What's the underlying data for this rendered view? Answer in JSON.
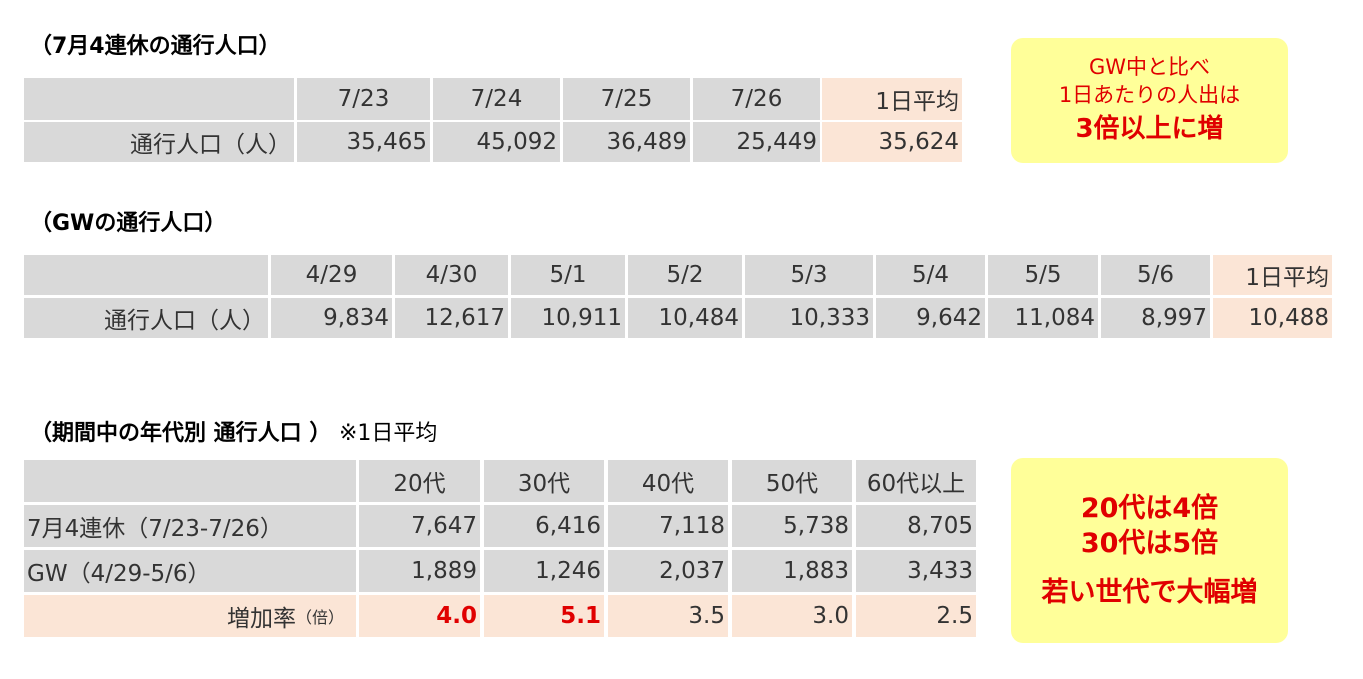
{
  "tables": [
    {
      "title": "（7月4連休の通行人口）",
      "header": [
        "7/23",
        "7/24",
        "7/25",
        "7/26",
        "1日平均"
      ],
      "rows": [
        {
          "label": "通行人口（人）",
          "cells": [
            "35,465",
            "45,092",
            "36,489",
            "25,449",
            "35,624"
          ]
        }
      ]
    },
    {
      "title": "（GWの通行人口）",
      "header": [
        "4/29",
        "4/30",
        "5/1",
        "5/2",
        "5/3",
        "5/4",
        "5/5",
        "5/6",
        "1日平均"
      ],
      "rows": [
        {
          "label": "通行人口（人）",
          "cells": [
            "9,834",
            "12,617",
            "10,911",
            "10,484",
            "10,333",
            "9,642",
            "11,084",
            "8,997",
            "10,488"
          ]
        }
      ]
    },
    {
      "title": "（期間中の年代別 通行人口 ）",
      "note": "※1日平均",
      "header": [
        "20代",
        "30代",
        "40代",
        "50代",
        "60代以上"
      ],
      "rows": [
        {
          "label": "7月4連休（7/23-7/26）",
          "cells": [
            "7,647",
            "6,416",
            "7,118",
            "5,738",
            "8,705"
          ]
        },
        {
          "label": "GW（4/29-5/6）",
          "cells": [
            "1,889",
            "1,246",
            "2,037",
            "1,883",
            "3,433"
          ]
        },
        {
          "label": "増加率",
          "unit": "（倍）",
          "cells": [
            "4.0",
            "5.1",
            "3.5",
            "3.0",
            "2.5"
          ]
        }
      ]
    }
  ],
  "callouts": [
    {
      "lines": [
        "GW中と比べ",
        "1日あたりの人出は",
        "3倍以上に増"
      ]
    },
    {
      "lines": [
        "20代は4倍",
        "30代は5倍",
        "若い世代で大幅増"
      ]
    }
  ]
}
